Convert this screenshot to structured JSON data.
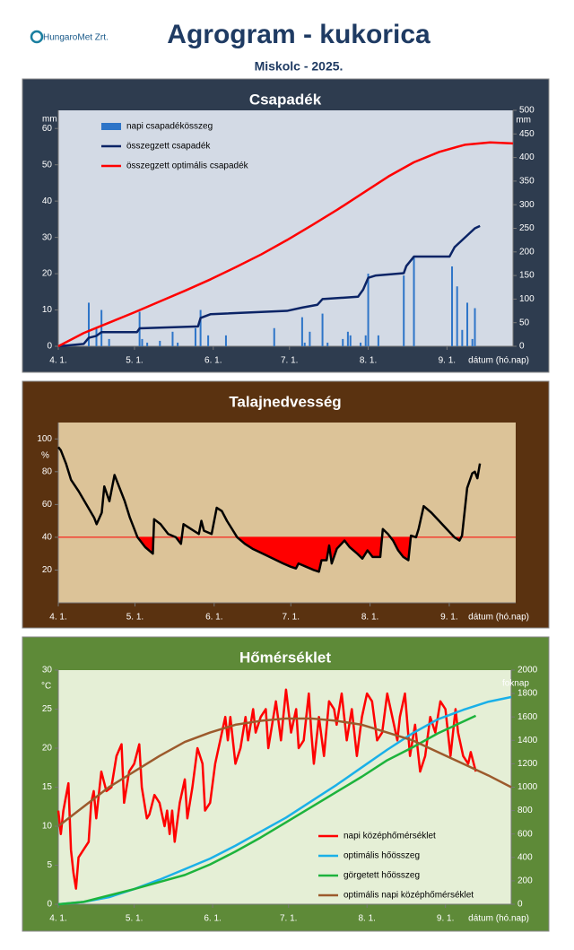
{
  "header": {
    "logo": "HungaroMet Zrt.",
    "title": "Agrogram - kukorica",
    "subtitle": "Miskolc - 2025."
  },
  "chart_data": [
    {
      "type": "combo",
      "title": "Csapadék",
      "y_unit": "mm",
      "y2_unit": "mm",
      "x_label": "dátum (hó.nap)",
      "xlim": [
        0,
        179
      ],
      "xticks": [
        {
          "value": 0,
          "label": "4. 1."
        },
        {
          "value": 30,
          "label": "5. 1."
        },
        {
          "value": 61,
          "label": "6. 1."
        },
        {
          "value": 91,
          "label": "7. 1."
        },
        {
          "value": 122,
          "label": "8. 1."
        },
        {
          "value": 153,
          "label": "9. 1."
        }
      ],
      "ylim": [
        0,
        65
      ],
      "yticks": [
        0,
        10,
        20,
        30,
        40,
        50,
        60
      ],
      "y2lim": [
        0,
        500
      ],
      "y2ticks": [
        0,
        50,
        100,
        150,
        200,
        250,
        300,
        350,
        400,
        450,
        500
      ],
      "legend": "top-left",
      "series": [
        {
          "name": "napi csapadékösszeg",
          "kind": "bar",
          "color": "#2e75c8",
          "x": [
            12,
            15,
            17,
            20,
            32,
            33,
            35,
            40,
            45,
            47,
            54,
            56,
            59,
            66,
            85,
            96,
            97,
            99,
            104,
            106,
            112,
            114,
            115,
            119,
            121,
            122,
            126,
            136,
            140,
            155,
            157,
            159,
            161,
            163,
            164
          ],
          "values": [
            12,
            5,
            10,
            2,
            9.5,
            2,
            1,
            1.5,
            4,
            1,
            5,
            10,
            3,
            3,
            5,
            8,
            1,
            4,
            9,
            1,
            2,
            4,
            3,
            1,
            3,
            20,
            3,
            19.5,
            24.5,
            22,
            16.5,
            4.5,
            12,
            2,
            10.5
          ]
        },
        {
          "name": "összegzett csapadék",
          "kind": "line",
          "axis": "y2",
          "color": "#0b2466",
          "x": [
            0,
            10,
            12,
            15,
            17,
            31,
            32,
            55,
            56,
            60,
            90,
            96,
            102,
            104,
            118,
            120,
            122,
            125,
            136,
            137,
            140,
            154,
            156,
            160,
            164,
            166
          ],
          "values": [
            0,
            5,
            18,
            22,
            30,
            30,
            38,
            42,
            60,
            68,
            75,
            82,
            88,
            100,
            105,
            120,
            145,
            150,
            155,
            170,
            190,
            190,
            210,
            230,
            250,
            255
          ]
        },
        {
          "name": "összegzett optimális csapadék",
          "kind": "line",
          "axis": "y2",
          "color": "#ff0000",
          "x": [
            0,
            10,
            20,
            30,
            40,
            50,
            60,
            70,
            80,
            90,
            100,
            110,
            120,
            130,
            140,
            150,
            160,
            170,
            179
          ],
          "values": [
            0,
            28,
            50,
            72,
            95,
            118,
            142,
            168,
            195,
            225,
            257,
            290,
            325,
            360,
            390,
            412,
            427,
            432,
            430
          ]
        }
      ]
    },
    {
      "type": "line",
      "title": "Talajnedvesség",
      "y_unit": "%",
      "x_label": "dátum (hó.nap)",
      "xlim": [
        0,
        179
      ],
      "xticks": [
        {
          "value": 0,
          "label": "4. 1."
        },
        {
          "value": 30,
          "label": "5. 1."
        },
        {
          "value": 61,
          "label": "6. 1."
        },
        {
          "value": 91,
          "label": "7. 1."
        },
        {
          "value": 122,
          "label": "8. 1."
        },
        {
          "value": 153,
          "label": "9. 1."
        }
      ],
      "ylim": [
        0,
        110
      ],
      "yticks": [
        20,
        40,
        60,
        80,
        100
      ],
      "threshold": 40,
      "threshold_color": "#ff0000",
      "series": [
        {
          "kind": "line",
          "color": "#000000",
          "x": [
            0,
            1,
            3,
            5,
            8,
            11,
            14,
            15,
            17,
            18,
            20,
            22,
            24,
            26,
            28,
            30,
            31,
            34,
            37,
            37.5,
            40,
            43,
            46,
            48,
            49,
            52,
            55,
            56,
            57,
            60,
            62,
            64,
            66,
            68,
            70,
            73,
            76,
            80,
            84,
            88,
            91,
            93,
            94,
            97,
            100,
            102,
            103,
            105,
            106,
            107,
            109,
            112,
            114,
            117,
            119,
            121,
            123,
            126,
            127,
            129,
            131,
            133,
            135,
            137,
            138,
            140,
            141,
            143,
            146,
            149,
            152,
            155,
            157,
            158,
            160,
            162,
            163,
            164,
            165
          ],
          "values": [
            95,
            93,
            85,
            75,
            68,
            60,
            52,
            48,
            55,
            71,
            62,
            78,
            70,
            62,
            52,
            44,
            40,
            34,
            30,
            51,
            48,
            42,
            40,
            36,
            48,
            45,
            42,
            50,
            44,
            42,
            58,
            56,
            50,
            45,
            40,
            36,
            33,
            30,
            27,
            24,
            22,
            21,
            24,
            22,
            20,
            19,
            26,
            26,
            35,
            24,
            33,
            38,
            34,
            30,
            27,
            32,
            28,
            28,
            45,
            42,
            38,
            32,
            28,
            26,
            41,
            40,
            45,
            59,
            55,
            50,
            45,
            40,
            38,
            41,
            70,
            79,
            80,
            76,
            85
          ]
        }
      ]
    },
    {
      "type": "line",
      "title": "Hőmérséklet",
      "y_unit": "°C",
      "y2_unit": "foknap",
      "x_label": "dátum (hó.nap)",
      "xlim": [
        0,
        179
      ],
      "xticks": [
        {
          "value": 0,
          "label": "4. 1."
        },
        {
          "value": 30,
          "label": "5. 1."
        },
        {
          "value": 61,
          "label": "6. 1."
        },
        {
          "value": 91,
          "label": "7. 1."
        },
        {
          "value": 122,
          "label": "8. 1."
        },
        {
          "value": 153,
          "label": "9. 1."
        }
      ],
      "ylim": [
        0,
        30
      ],
      "yticks": [
        0,
        5,
        10,
        15,
        20,
        25,
        30
      ],
      "y2lim": [
        0,
        2000
      ],
      "y2ticks": [
        0,
        200,
        400,
        600,
        800,
        1000,
        1200,
        1400,
        1600,
        1800,
        2000
      ],
      "legend": "bottom-right",
      "series": [
        {
          "name": "napi középhőmérséklet",
          "kind": "line",
          "color": "#ff0000",
          "x": [
            0,
            1,
            2,
            4,
            5,
            6,
            7,
            8,
            10,
            12,
            13,
            14,
            15,
            17,
            19,
            21,
            23,
            25,
            26,
            27,
            28,
            30,
            32,
            33,
            35,
            36,
            38,
            40,
            42,
            43,
            44,
            45,
            46,
            48,
            50,
            51,
            53,
            55,
            57,
            58,
            60,
            62,
            64,
            66,
            67,
            68,
            70,
            72,
            74,
            75,
            77,
            78,
            80,
            82,
            83,
            85,
            86,
            88,
            90,
            92,
            94,
            95,
            97,
            99,
            100,
            101,
            103,
            105,
            107,
            109,
            110,
            112,
            114,
            116,
            118,
            120,
            122,
            124,
            126,
            128,
            130,
            132,
            134,
            135,
            137,
            139,
            141,
            143,
            145,
            147,
            149,
            151,
            153,
            154,
            155,
            157,
            158,
            160,
            162,
            163,
            165
          ],
          "values": [
            12,
            9,
            12,
            15.5,
            7,
            4,
            2,
            6,
            7,
            8,
            13,
            14.5,
            11,
            17,
            14.5,
            15,
            19,
            20.5,
            13,
            15,
            17,
            18,
            20.5,
            15,
            11,
            11.5,
            14,
            13,
            10,
            12,
            9,
            12,
            8,
            13,
            16,
            11,
            15,
            20,
            18,
            12,
            13,
            18,
            21,
            24,
            21,
            24,
            18,
            20,
            24,
            21,
            25,
            22,
            24,
            25,
            20,
            24,
            26,
            21,
            27.5,
            22,
            25,
            20,
            21,
            27,
            22,
            18,
            24,
            19,
            26,
            25,
            23,
            27,
            21,
            25,
            19,
            24,
            27,
            26,
            21,
            22,
            27,
            24,
            21,
            24,
            27,
            19,
            23,
            17,
            19,
            24,
            22,
            26,
            25,
            22,
            19,
            25,
            22,
            19,
            18,
            19.5,
            17
          ]
        },
        {
          "name": "optimális hőösszeg",
          "kind": "line",
          "axis": "y2",
          "color": "#1ab0e8",
          "x": [
            0,
            10,
            20,
            30,
            40,
            50,
            60,
            70,
            80,
            90,
            100,
            110,
            120,
            130,
            140,
            150,
            160,
            170,
            179
          ],
          "values": [
            0,
            20,
            60,
            130,
            210,
            300,
            390,
            500,
            620,
            740,
            880,
            1020,
            1170,
            1320,
            1460,
            1580,
            1660,
            1730,
            1770
          ]
        },
        {
          "name": "görgetett hőösszeg",
          "kind": "line",
          "axis": "y2",
          "color": "#1db33c",
          "x": [
            0,
            10,
            20,
            30,
            40,
            50,
            60,
            70,
            80,
            90,
            100,
            110,
            120,
            130,
            140,
            150,
            160,
            165
          ],
          "values": [
            0,
            20,
            75,
            130,
            190,
            250,
            340,
            450,
            570,
            700,
            830,
            960,
            1090,
            1230,
            1340,
            1460,
            1560,
            1610
          ]
        },
        {
          "name": "optimális napi középhőmérséklet",
          "kind": "line",
          "color": "#9c5a2c",
          "x": [
            0,
            10,
            20,
            30,
            40,
            50,
            60,
            70,
            80,
            90,
            100,
            110,
            120,
            130,
            140,
            150,
            160,
            170,
            179
          ],
          "values": [
            10,
            12.5,
            15,
            17,
            19,
            20.8,
            22,
            23,
            23.5,
            23.8,
            23.8,
            23.5,
            23,
            22,
            21,
            19.5,
            18,
            16.5,
            15
          ]
        }
      ]
    }
  ]
}
